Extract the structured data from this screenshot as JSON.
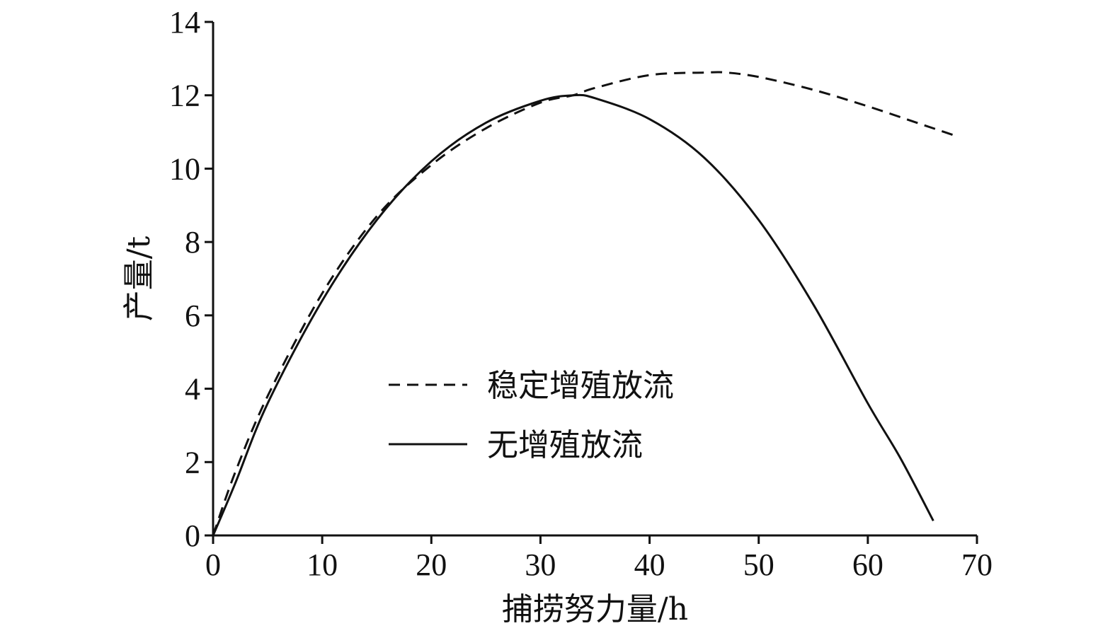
{
  "chart_data": {
    "type": "line",
    "xlabel": "捕捞努力量/h",
    "ylabel": "产量/t",
    "xlim": [
      0,
      70
    ],
    "ylim": [
      0,
      14
    ],
    "xticks": [
      "0",
      "10",
      "20",
      "30",
      "40",
      "50",
      "60",
      "70"
    ],
    "yticks": [
      "0",
      "2",
      "4",
      "6",
      "8",
      "10",
      "12",
      "14"
    ],
    "grid": false,
    "legend_position": "center",
    "series": [
      {
        "name": "稳定增殖放流",
        "style": "dashed",
        "color": "#111111",
        "x": [
          0,
          2,
          5,
          10,
          15,
          20,
          25,
          30,
          33,
          35,
          40,
          45,
          47,
          50,
          55,
          60,
          65,
          68
        ],
        "y": [
          0,
          1.7,
          3.8,
          6.6,
          8.7,
          10.1,
          11.1,
          11.8,
          12.0,
          12.2,
          12.55,
          12.62,
          12.62,
          12.5,
          12.15,
          11.7,
          11.2,
          10.9
        ]
      },
      {
        "name": "无增殖放流",
        "style": "solid",
        "color": "#111111",
        "x": [
          0,
          2,
          5,
          10,
          15,
          20,
          25,
          30,
          33,
          35,
          40,
          45,
          50,
          55,
          60,
          63,
          66
        ],
        "y": [
          0,
          1.4,
          3.6,
          6.4,
          8.6,
          10.2,
          11.25,
          11.85,
          12.0,
          11.92,
          11.35,
          10.3,
          8.6,
          6.3,
          3.6,
          2.1,
          0.4
        ]
      }
    ]
  }
}
